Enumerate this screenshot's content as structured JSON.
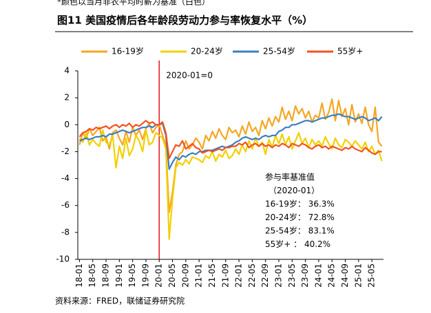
{
  "header": {
    "note": "*颜色以当月非农平均时薪为基准（白色）",
    "title": "图11 美国疫情后各年龄段劳动力参与率恢复水平（%）"
  },
  "chart_data": {
    "type": "line",
    "categories": [
      "18-01",
      null,
      null,
      null,
      "18-05",
      null,
      null,
      null,
      "18-09",
      null,
      null,
      null,
      "19-01",
      null,
      null,
      null,
      "19-05",
      null,
      null,
      null,
      "19-09",
      null,
      null,
      null,
      "20-01",
      null,
      null,
      null,
      "20-05",
      null,
      null,
      null,
      "20-09",
      null,
      null,
      null,
      "21-01",
      null,
      null,
      null,
      "21-05",
      null,
      null,
      null,
      "21-09",
      null,
      null,
      null,
      "22-01",
      null,
      null,
      null,
      "22-05",
      null,
      null,
      null,
      "22-09",
      null,
      null,
      null,
      "23-01",
      null,
      null,
      null,
      "23-05",
      null,
      null,
      null,
      "23-09",
      null,
      null,
      null,
      "24-01",
      null,
      null,
      null,
      "24-05",
      null,
      null,
      null,
      "24-09",
      null,
      null,
      null,
      "25-01",
      null,
      null,
      null,
      "25-05",
      null,
      null,
      null
    ],
    "series": [
      {
        "name": "16-19岁",
        "color": "#f5a623",
        "values": [
          -1.5,
          -0.6,
          -1.0,
          -0.3,
          -0.8,
          -0.5,
          -0.2,
          -1.2,
          -0.9,
          -1.8,
          -0.6,
          -0.4,
          -1.0,
          -1.5,
          -0.5,
          -1.3,
          -0.2,
          -0.8,
          -0.4,
          -1.1,
          -0.3,
          0.1,
          -0.6,
          -0.2,
          0,
          -0.8,
          -1.5,
          -6.5,
          -5.0,
          -3.0,
          -2.2,
          -2.0,
          -1.2,
          -1.8,
          -1.5,
          -1.0,
          -1.3,
          -1.8,
          -0.8,
          -1.2,
          -0.5,
          -1.0,
          -0.3,
          -0.8,
          -1.1,
          -0.2,
          -0.6,
          -0.4,
          -0.9,
          -0.1,
          -0.7,
          0.2,
          -0.5,
          -0.2,
          -0.8,
          0.3,
          -0.3,
          0.5,
          -0.1,
          0.6,
          0.2,
          1.3,
          0.4,
          1.0,
          0.3,
          1.4,
          0.8,
          1.2,
          0.5,
          1.0,
          0.2,
          0.7,
          0.5,
          1.6,
          0.4,
          0.9,
          1.9,
          0.3,
          1.8,
          0.6,
          1.2,
          0.0,
          1.5,
          0.2,
          0.8,
          0.1,
          1.3,
          0.0,
          -0.5,
          1.3,
          -1.3,
          -1.6
        ]
      },
      {
        "name": "20-24岁",
        "color": "#f2d000",
        "values": [
          -1.0,
          -1.3,
          -0.6,
          -1.5,
          -1.1,
          -1.4,
          -1.6,
          -0.4,
          -1.3,
          -1.5,
          -0.8,
          -3.2,
          -1.6,
          -2.5,
          -1.0,
          -2.3,
          -1.8,
          -0.8,
          -1.2,
          -2.0,
          -0.4,
          -1.5,
          -1.3,
          -0.6,
          -0.8,
          -1.0,
          -1.8,
          -8.5,
          -5.5,
          -3.2,
          -2.8,
          -3.0,
          -2.6,
          -2.9,
          -2.4,
          -2.5,
          -2.6,
          -2.8,
          -2.3,
          -2.5,
          -2.0,
          -2.7,
          -2.2,
          -2.4,
          -1.9,
          -2.5,
          -2.3,
          -1.8,
          -2.2,
          -1.5,
          -2.0,
          -1.2,
          -1.8,
          -1.0,
          -1.6,
          -1.3,
          -2.2,
          -1.1,
          -1.7,
          -0.8,
          -1.4,
          -0.7,
          -1.5,
          -0.9,
          -1.8,
          -1.2,
          -0.6,
          -1.4,
          -1.0,
          -1.7,
          -1.1,
          -1.5,
          -1.2,
          -1.6,
          -0.9,
          -1.4,
          -1.8,
          -1.0,
          -1.5,
          -1.7,
          -1.1,
          -1.3,
          -1.6,
          -1.2,
          -1.5,
          -1.8,
          -1.3,
          -2.0,
          -1.6,
          -2.2,
          -1.9,
          -2.7
        ]
      },
      {
        "name": "25-54岁",
        "color": "#3a7ec2",
        "values": [
          -1.2,
          -1.1,
          -1.0,
          -1.1,
          -1.0,
          -0.9,
          -0.9,
          -0.8,
          -0.9,
          -0.7,
          -0.7,
          -0.6,
          -0.5,
          -0.4,
          -0.5,
          -0.6,
          -0.5,
          -0.4,
          -0.3,
          -0.2,
          -0.2,
          -0.1,
          -0.2,
          0.0,
          0,
          0.1,
          -0.8,
          -3.3,
          -2.8,
          -2.4,
          -2.6,
          -2.3,
          -2.4,
          -2.2,
          -2.1,
          -2.2,
          -2.0,
          -2.0,
          -1.9,
          -1.9,
          -1.9,
          -1.8,
          -1.7,
          -1.6,
          -1.7,
          -1.6,
          -1.5,
          -1.3,
          -1.2,
          -1.0,
          -0.9,
          -1.0,
          -1.1,
          -1.0,
          -1.1,
          -0.9,
          -0.8,
          -0.9,
          -0.8,
          -0.8,
          -0.5,
          -0.4,
          -0.2,
          -0.2,
          0.0,
          0.0,
          0.1,
          0.2,
          0.3,
          0.3,
          0.2,
          0.3,
          0.4,
          0.5,
          0.5,
          0.6,
          0.7,
          0.7,
          0.8,
          0.7,
          0.6,
          0.6,
          0.5,
          0.4,
          0.5,
          0.6,
          0.5,
          0.3,
          0.4,
          0.5,
          0.3,
          0.6
        ]
      },
      {
        "name": "55岁+",
        "color": "#f4511e",
        "values": [
          -0.9,
          -0.6,
          -0.5,
          -0.3,
          -0.4,
          -0.2,
          -0.3,
          -0.2,
          -0.1,
          -0.3,
          -0.1,
          0.0,
          -0.2,
          0.0,
          -0.1,
          0.1,
          -0.2,
          0.0,
          -0.1,
          0.1,
          0.3,
          0.1,
          0.2,
          0.0,
          0,
          0.2,
          -0.6,
          -2.5,
          -2.0,
          -1.5,
          -1.6,
          -1.2,
          -1.8,
          -1.6,
          -1.4,
          -1.7,
          -1.8,
          -2.1,
          -2.0,
          -1.9,
          -2.0,
          -1.9,
          -1.8,
          -1.9,
          -1.7,
          -1.7,
          -1.6,
          -1.6,
          -1.4,
          -1.5,
          -1.3,
          -1.7,
          -1.5,
          -1.4,
          -1.6,
          -1.4,
          -1.6,
          -1.5,
          -1.7,
          -1.5,
          -1.6,
          -1.4,
          -1.5,
          -1.7,
          -1.4,
          -1.5,
          -1.6,
          -1.4,
          -1.5,
          -1.7,
          -1.8,
          -1.6,
          -1.5,
          -1.7,
          -1.6,
          -1.8,
          -1.6,
          -1.7,
          -1.8,
          -1.9,
          -1.7,
          -1.8,
          -1.6,
          -1.8,
          -1.9,
          -2.0,
          -1.7,
          -1.9,
          -2.1,
          -2.2,
          -2.0,
          -2.0
        ]
      }
    ],
    "ylim": [
      -10,
      4
    ],
    "yticks": [
      -10,
      -8,
      -6,
      -4,
      -2,
      0,
      2,
      4
    ],
    "vline": {
      "at": "20-01",
      "label": "2020-01=0",
      "color": "#e8141c"
    },
    "annotation": {
      "color": "#e8141c",
      "lines": [
        "参与率基准值",
        "（2020-01）",
        "16-19岁：  36.3%",
        "20-24岁：  72.8%",
        "25-54岁：  83.1%",
        "55岁+    ：  40.2%"
      ]
    }
  },
  "footer": {
    "source": "资料来源：FRED，联储证券研究院"
  }
}
